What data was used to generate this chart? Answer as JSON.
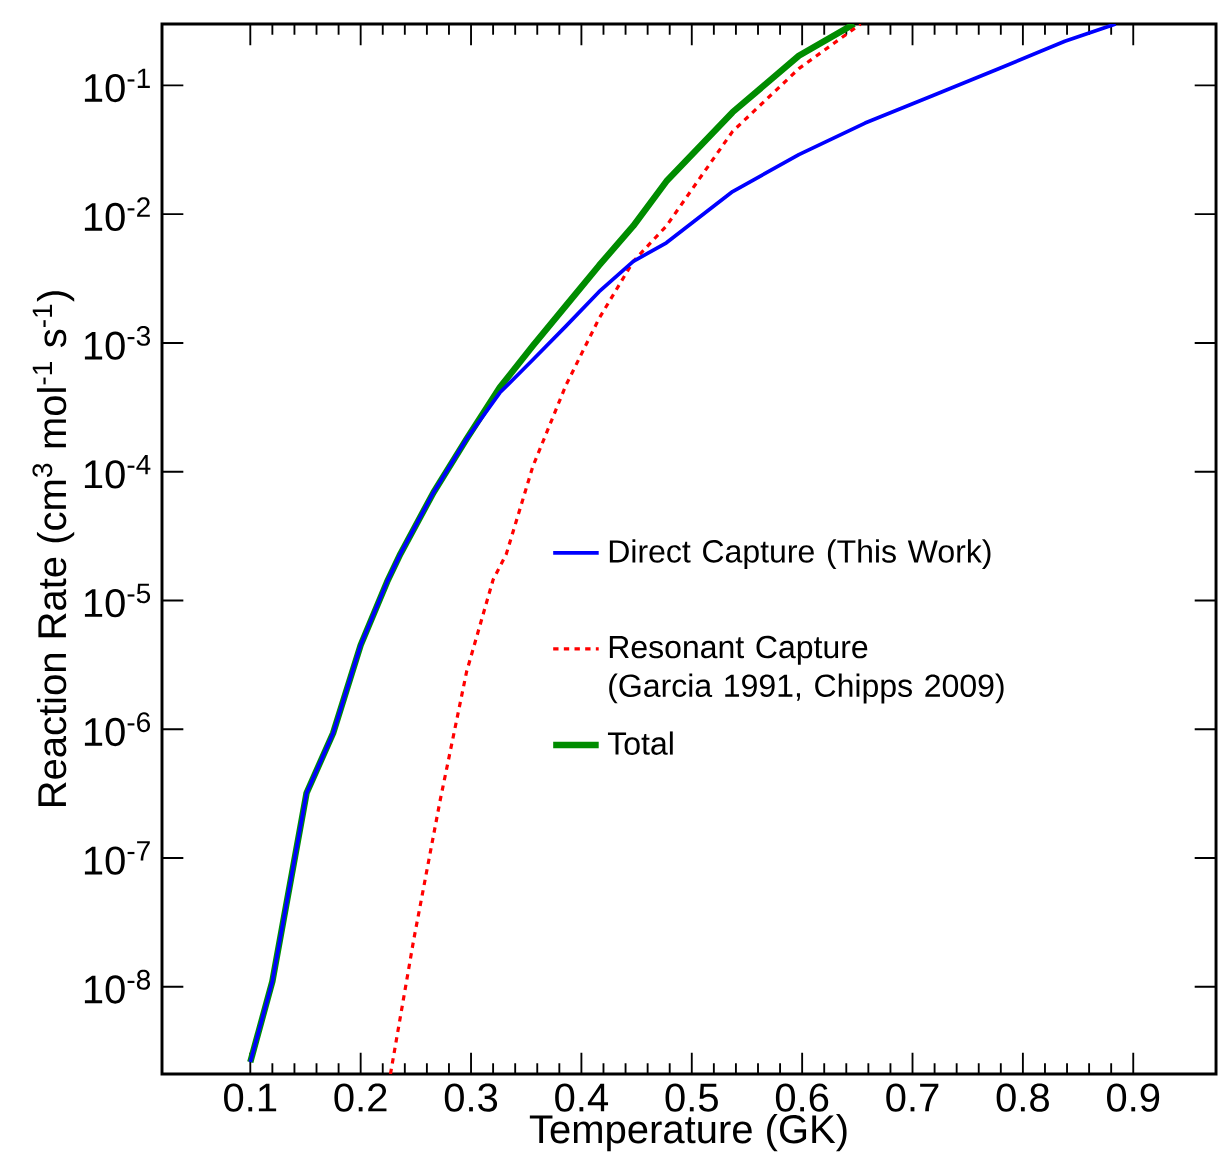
{
  "chart_data": {
    "type": "line",
    "xlabel": "Temperature (GK)",
    "ylabel": "Reaction Rate (cm$^{3}$ mol$^{-1}$ s$^{-1}$)",
    "log": "y",
    "xlim": [
      0.02,
      0.975
    ],
    "ylim": [
      2.1e-09,
      0.3
    ],
    "xticks": [
      0.1,
      0.2,
      0.3,
      0.4,
      0.5,
      0.6,
      0.7,
      0.8,
      0.9
    ],
    "yticks": [
      {
        "value": 0.1,
        "label": "10$^{-1}$"
      },
      {
        "value": 0.01,
        "label": "10$^{-2}$"
      },
      {
        "value": 0.001,
        "label": "10$^{-3}$"
      },
      {
        "value": 0.0001,
        "label": "10$^{-4}$"
      },
      {
        "value": 1e-05,
        "label": "10$^{-5}$"
      },
      {
        "value": 1e-06,
        "label": "10$^{-6}$"
      },
      {
        "value": 1e-07,
        "label": "10$^{-7}$"
      },
      {
        "value": 1e-08,
        "label": "10$^{-8}$"
      }
    ],
    "legend": "right",
    "grid": false,
    "series": [
      {
        "name": "Direct Capture (This Work)",
        "color": "#0000ff",
        "line_style": "solid",
        "x": [
          0.1,
          0.12,
          0.151,
          0.175,
          0.2,
          0.224,
          0.236,
          0.266,
          0.296,
          0.326,
          0.356,
          0.386,
          0.416,
          0.447,
          0.477,
          0.537,
          0.597,
          0.657,
          0.718,
          0.778,
          0.838,
          0.884
        ],
        "values": [
          2.6e-09,
          1.1e-08,
          3.2e-07,
          9.3e-07,
          4.5e-06,
          1.4e-05,
          2.3e-05,
          6.9e-05,
          0.00018,
          0.00041,
          0.00074,
          0.00135,
          0.0025,
          0.0043,
          0.006,
          0.015,
          0.029,
          0.051,
          0.083,
          0.135,
          0.22,
          0.3
        ]
      },
      {
        "name": "Resonant Capture (Garcia 1991, Chipps 2009)",
        "color": "#ff0000",
        "line_style": "dotted",
        "x": [
          0.227,
          0.248,
          0.272,
          0.296,
          0.32,
          0.332,
          0.356,
          0.386,
          0.416,
          0.447,
          0.477,
          0.537,
          0.597,
          0.653
        ],
        "values": [
          2.1e-09,
          2.3e-08,
          2.8e-07,
          2.8e-06,
          1.45e-05,
          2.3e-05,
          0.00011,
          0.00047,
          0.00155,
          0.0043,
          0.0081,
          0.044,
          0.135,
          0.3
        ]
      },
      {
        "name": "Total",
        "color": "#008c00",
        "line_style": "solid",
        "x": [
          0.1,
          0.12,
          0.151,
          0.175,
          0.2,
          0.224,
          0.236,
          0.266,
          0.296,
          0.326,
          0.356,
          0.386,
          0.416,
          0.447,
          0.477,
          0.537,
          0.597,
          0.647
        ],
        "values": [
          2.6e-09,
          1.1e-08,
          3.2e-07,
          9.3e-07,
          4.5e-06,
          1.4e-05,
          2.3e-05,
          6.9e-05,
          0.00018,
          0.00045,
          0.00095,
          0.00195,
          0.004,
          0.0081,
          0.018,
          0.062,
          0.17,
          0.3
        ]
      }
    ]
  }
}
